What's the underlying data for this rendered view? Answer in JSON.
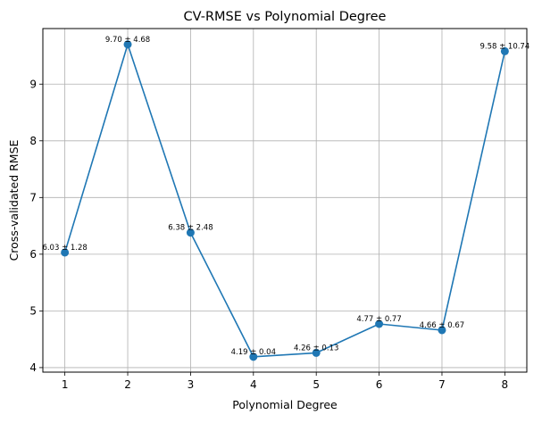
{
  "chart_data": {
    "type": "line",
    "title": "CV-RMSE vs Polynomial Degree",
    "xlabel": "Polynomial Degree",
    "ylabel": "Cross-validated RMSE",
    "x": [
      1,
      2,
      3,
      4,
      5,
      6,
      7,
      8
    ],
    "xlim": [
      0.65,
      8.35
    ],
    "xticks": [
      1,
      2,
      3,
      4,
      5,
      6,
      7,
      8
    ],
    "ylim": [
      3.92,
      9.98
    ],
    "yticks": [
      4,
      5,
      6,
      7,
      8,
      9
    ],
    "grid": true,
    "series": [
      {
        "values": [
          6.03,
          9.7,
          6.38,
          4.19,
          4.26,
          4.77,
          4.66,
          9.58
        ],
        "color": "#1f77b4",
        "marker": "circle"
      }
    ],
    "annotations": [
      "6.03 ± 1.28",
      "9.70 ± 4.68",
      "6.38 ± 2.48",
      "4.19 ± 0.04",
      "4.26 ± 0.13",
      "4.77 ± 0.77",
      "4.66 ± 0.67",
      "9.58 ± 10.74"
    ]
  }
}
